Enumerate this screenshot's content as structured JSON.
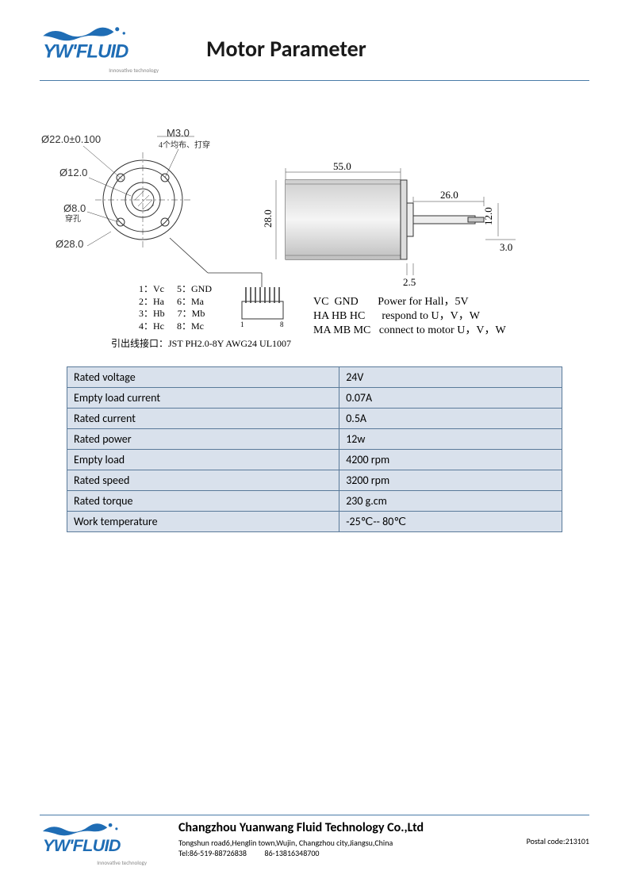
{
  "header": {
    "title": "Motor Parameter",
    "logo_text": "YW'FLUID",
    "tagline": "Innovative technology"
  },
  "diagram": {
    "dims": {
      "d22": "Ø22.0±0.100",
      "d12": "Ø12.0",
      "d8": "Ø8.0",
      "d8_note": "穿孔",
      "d28": "Ø28.0",
      "m3": "M3.0",
      "m3_note": "4个均布、打穿",
      "body_len": "55.0",
      "body_dia": "28.0",
      "shaft_len": "26.0",
      "shaft_dia": "12.0",
      "shaft_tip": "3.0",
      "gap": "2.5"
    },
    "pins": [
      [
        "1：Vc",
        "5：GND"
      ],
      [
        "2：Ha",
        "6：Ma"
      ],
      [
        "3：Hb",
        "7：Mb"
      ],
      [
        "4：Hc",
        "8：Mc"
      ]
    ],
    "connector_note": "引出线接口：JST PH2.0-8Y AWG24 UL1007",
    "signal_lines": [
      "VC  GND       Power for Hall，5V",
      "HA HB HC      respond to U，V，W",
      "MA MB MC   connect to motor U，V，W"
    ]
  },
  "specs": [
    [
      "Rated voltage",
      "24V"
    ],
    [
      "Empty load current",
      "0.07A"
    ],
    [
      "Rated current",
      "0.5A"
    ],
    [
      "Rated power",
      "12w"
    ],
    [
      "Empty load",
      "4200 rpm"
    ],
    [
      "Rated speed",
      "3200 rpm"
    ],
    [
      "Rated torque",
      "230 g.cm"
    ],
    [
      "Work temperature",
      "-25℃-- 80℃"
    ]
  ],
  "footer": {
    "company": "Changzhou Yuanwang Fluid Technology Co.,Ltd",
    "address": "Tongshun road6,Henglin town,Wujin, Changzhou city,Jiangsu,China",
    "tel": "Tel:86-519-88726838          86-13816348700",
    "postal": "Postal code:213101"
  }
}
